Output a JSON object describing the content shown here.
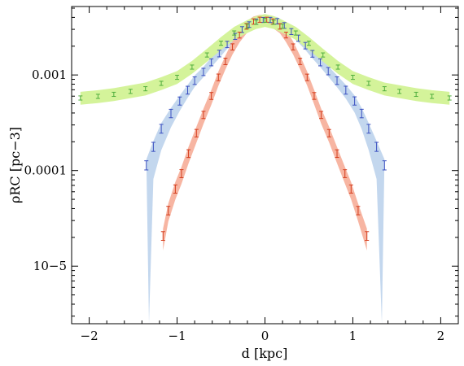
{
  "chart_data": {
    "type": "scatter",
    "xlabel": "d [kpc]",
    "ylabel": "ρRC [pc−3]",
    "y_scale": "log",
    "xlim": [
      -2.2,
      2.2
    ],
    "ylim": [
      2.5e-06,
      0.0052
    ],
    "x_ticks": [
      -2,
      -1,
      0,
      1,
      2
    ],
    "x_tick_labels": [
      "−2",
      "−1",
      "0",
      "1",
      "2"
    ],
    "y_ticks": [
      1e-05,
      0.0001,
      0.001
    ],
    "y_tick_labels": [
      "10−5",
      "0.0001",
      "0.001"
    ],
    "grid": false,
    "legend": "none",
    "series": [
      {
        "color": "#3a4fc0",
        "band_color": "#c3d7ee",
        "x": [
          -1.35,
          -1.27,
          -1.18,
          -1.07,
          -0.97,
          -0.88,
          -0.8,
          -0.7,
          -0.61,
          -0.52,
          -0.43,
          -0.34,
          -0.26,
          -0.18,
          -0.1,
          -0.02,
          0.06,
          0.14,
          0.22,
          0.3,
          0.38,
          0.46,
          0.54,
          0.63,
          0.72,
          0.82,
          0.92,
          1.02,
          1.1,
          1.18,
          1.27,
          1.36
        ],
        "y": [
          0.000114,
          0.000178,
          0.000275,
          0.000397,
          0.000536,
          0.000696,
          0.000875,
          0.00108,
          0.00136,
          0.00168,
          0.00209,
          0.00254,
          0.00299,
          0.00337,
          0.00362,
          0.00377,
          0.00377,
          0.00365,
          0.0033,
          0.00285,
          0.00243,
          0.00203,
          0.00167,
          0.00136,
          0.0011,
          0.000875,
          0.000696,
          0.000537,
          0.000397,
          0.000275,
          0.000178,
          0.000114
        ]
      },
      {
        "color": "#d43c1c",
        "band_color": "#f7b5a2",
        "x": [
          -1.16,
          -1.1,
          -1.02,
          -0.95,
          -0.87,
          -0.78,
          -0.7,
          -0.61,
          -0.53,
          -0.45,
          -0.37,
          -0.29,
          -0.21,
          -0.13,
          -0.06,
          0.02,
          0.09,
          0.17,
          0.24,
          0.32,
          0.4,
          0.48,
          0.56,
          0.64,
          0.73,
          0.82,
          0.91,
          0.98,
          1.06,
          1.16
        ],
        "y": [
          2.08e-05,
          3.83e-05,
          6.44e-05,
          9.32e-05,
          0.000151,
          0.000247,
          0.000383,
          0.000605,
          0.000946,
          0.00139,
          0.00197,
          0.00262,
          0.00323,
          0.00363,
          0.00379,
          0.00379,
          0.00363,
          0.00323,
          0.00262,
          0.00197,
          0.00139,
          0.000946,
          0.000605,
          0.000383,
          0.000247,
          0.000151,
          9.32e-05,
          6.44e-05,
          3.83e-05,
          2.08e-05
        ]
      },
      {
        "color": "#4fae3d",
        "band_color": "#d4f39a",
        "x": [
          -2.1,
          -1.9,
          -1.72,
          -1.53,
          -1.36,
          -1.18,
          -1.0,
          -0.83,
          -0.66,
          -0.5,
          -0.35,
          -0.2,
          -0.1,
          0.0,
          0.1,
          0.2,
          0.35,
          0.5,
          0.66,
          0.83,
          1.0,
          1.18,
          1.36,
          1.53,
          1.72,
          1.9,
          2.1
        ],
        "y": [
          0.000575,
          0.000598,
          0.000628,
          0.000674,
          0.000718,
          0.000818,
          0.000946,
          0.00121,
          0.00162,
          0.00215,
          0.00275,
          0.00324,
          0.00356,
          0.00374,
          0.00356,
          0.00324,
          0.00275,
          0.00215,
          0.00162,
          0.00121,
          0.000946,
          0.000818,
          0.000718,
          0.000674,
          0.000628,
          0.000598,
          0.000575
        ]
      }
    ]
  }
}
